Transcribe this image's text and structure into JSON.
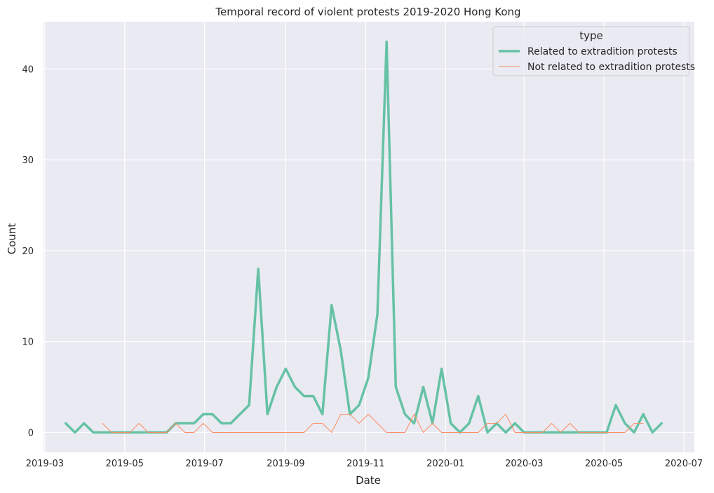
{
  "chart_data": {
    "type": "line",
    "title": "Temporal record of violent protests 2019-2020 Hong Kong",
    "xlabel": "Date",
    "ylabel": "Count",
    "xlim": [
      "2019-02-28",
      "2020-07-09"
    ],
    "ylim": [
      -2.2,
      45.2
    ],
    "x_ticks": [
      "2019-03",
      "2019-05",
      "2019-07",
      "2019-09",
      "2019-11",
      "2020-01",
      "2020-03",
      "2020-05",
      "2020-07"
    ],
    "x_tick_dates": [
      "2019-03-01",
      "2019-05-01",
      "2019-07-01",
      "2019-09-01",
      "2019-11-01",
      "2020-01-01",
      "2020-03-01",
      "2020-05-01",
      "2020-07-01"
    ],
    "y_ticks": [
      0,
      10,
      20,
      30,
      40
    ],
    "grid": true,
    "legend": {
      "title": "type",
      "placement": "top-right"
    },
    "colors": {
      "background": "#eaeaf2",
      "grid": "#ffffff",
      "text": "#262626"
    },
    "series": [
      {
        "name": "Related to extradition protests",
        "color": "#66c2a5",
        "width": 3.5,
        "points": [
          [
            "2019-03-17",
            1
          ],
          [
            "2019-03-24",
            0
          ],
          [
            "2019-03-31",
            1
          ],
          [
            "2019-04-07",
            0
          ],
          [
            "2019-04-14",
            0
          ],
          [
            "2019-04-21",
            0
          ],
          [
            "2019-04-28",
            0
          ],
          [
            "2019-05-05",
            0
          ],
          [
            "2019-05-12",
            0
          ],
          [
            "2019-05-19",
            0
          ],
          [
            "2019-05-26",
            0
          ],
          [
            "2019-06-02",
            0
          ],
          [
            "2019-06-09",
            1
          ],
          [
            "2019-06-16",
            1
          ],
          [
            "2019-06-23",
            1
          ],
          [
            "2019-06-30",
            2
          ],
          [
            "2019-07-07",
            2
          ],
          [
            "2019-07-14",
            1
          ],
          [
            "2019-07-21",
            1
          ],
          [
            "2019-07-28",
            2
          ],
          [
            "2019-08-04",
            3
          ],
          [
            "2019-08-11",
            18
          ],
          [
            "2019-08-18",
            2
          ],
          [
            "2019-08-25",
            5
          ],
          [
            "2019-09-01",
            7
          ],
          [
            "2019-09-08",
            5
          ],
          [
            "2019-09-15",
            4
          ],
          [
            "2019-09-22",
            4
          ],
          [
            "2019-09-29",
            2
          ],
          [
            "2019-10-06",
            14
          ],
          [
            "2019-10-13",
            9
          ],
          [
            "2019-10-20",
            2
          ],
          [
            "2019-10-27",
            3
          ],
          [
            "2019-11-03",
            6
          ],
          [
            "2019-11-10",
            13
          ],
          [
            "2019-11-17",
            43
          ],
          [
            "2019-11-24",
            5
          ],
          [
            "2019-12-01",
            2
          ],
          [
            "2019-12-08",
            1
          ],
          [
            "2019-12-15",
            5
          ],
          [
            "2019-12-22",
            1
          ],
          [
            "2019-12-29",
            7
          ],
          [
            "2020-01-05",
            1
          ],
          [
            "2020-01-12",
            0
          ],
          [
            "2020-01-19",
            1
          ],
          [
            "2020-01-26",
            4
          ],
          [
            "2020-02-02",
            0
          ],
          [
            "2020-02-09",
            1
          ],
          [
            "2020-02-16",
            0
          ],
          [
            "2020-02-23",
            1
          ],
          [
            "2020-03-01",
            0
          ],
          [
            "2020-03-08",
            0
          ],
          [
            "2020-03-15",
            0
          ],
          [
            "2020-03-22",
            0
          ],
          [
            "2020-03-29",
            0
          ],
          [
            "2020-04-05",
            0
          ],
          [
            "2020-04-12",
            0
          ],
          [
            "2020-04-19",
            0
          ],
          [
            "2020-04-26",
            0
          ],
          [
            "2020-05-03",
            0
          ],
          [
            "2020-05-10",
            3
          ],
          [
            "2020-05-17",
            1
          ],
          [
            "2020-05-24",
            0
          ],
          [
            "2020-05-31",
            2
          ],
          [
            "2020-06-07",
            0
          ],
          [
            "2020-06-14",
            1
          ]
        ]
      },
      {
        "name": "Not related to extradition protests",
        "color": "#fc8d62",
        "width": 1,
        "points": [
          [
            "2019-04-14",
            1
          ],
          [
            "2019-04-21",
            0
          ],
          [
            "2019-04-28",
            0
          ],
          [
            "2019-05-05",
            0
          ],
          [
            "2019-05-12",
            1
          ],
          [
            "2019-05-19",
            0
          ],
          [
            "2019-05-26",
            0
          ],
          [
            "2019-06-02",
            0
          ],
          [
            "2019-06-09",
            1
          ],
          [
            "2019-06-16",
            0
          ],
          [
            "2019-06-23",
            0
          ],
          [
            "2019-06-30",
            1
          ],
          [
            "2019-07-07",
            0
          ],
          [
            "2019-07-14",
            0
          ],
          [
            "2019-07-21",
            0
          ],
          [
            "2019-07-28",
            0
          ],
          [
            "2019-08-04",
            0
          ],
          [
            "2019-08-11",
            0
          ],
          [
            "2019-08-18",
            0
          ],
          [
            "2019-08-25",
            0
          ],
          [
            "2019-09-01",
            0
          ],
          [
            "2019-09-08",
            0
          ],
          [
            "2019-09-15",
            0
          ],
          [
            "2019-09-22",
            1
          ],
          [
            "2019-09-29",
            1
          ],
          [
            "2019-10-06",
            0
          ],
          [
            "2019-10-13",
            2
          ],
          [
            "2019-10-20",
            2
          ],
          [
            "2019-10-27",
            1
          ],
          [
            "2019-11-03",
            2
          ],
          [
            "2019-11-10",
            1
          ],
          [
            "2019-11-17",
            0
          ],
          [
            "2019-11-24",
            0
          ],
          [
            "2019-12-01",
            0
          ],
          [
            "2019-12-08",
            2
          ],
          [
            "2019-12-15",
            0
          ],
          [
            "2019-12-22",
            1
          ],
          [
            "2019-12-29",
            0
          ],
          [
            "2020-01-05",
            0
          ],
          [
            "2020-01-12",
            0
          ],
          [
            "2020-01-19",
            0
          ],
          [
            "2020-01-26",
            0
          ],
          [
            "2020-02-02",
            1
          ],
          [
            "2020-02-09",
            1
          ],
          [
            "2020-02-16",
            2
          ],
          [
            "2020-02-23",
            0
          ],
          [
            "2020-03-01",
            0
          ],
          [
            "2020-03-08",
            0
          ],
          [
            "2020-03-15",
            0
          ],
          [
            "2020-03-22",
            1
          ],
          [
            "2020-03-29",
            0
          ],
          [
            "2020-04-05",
            1
          ],
          [
            "2020-04-12",
            0
          ],
          [
            "2020-04-19",
            0
          ],
          [
            "2020-04-26",
            0
          ],
          [
            "2020-05-03",
            0
          ],
          [
            "2020-05-10",
            0
          ],
          [
            "2020-05-17",
            0
          ],
          [
            "2020-05-24",
            1
          ],
          [
            "2020-05-31",
            1
          ]
        ]
      }
    ]
  }
}
